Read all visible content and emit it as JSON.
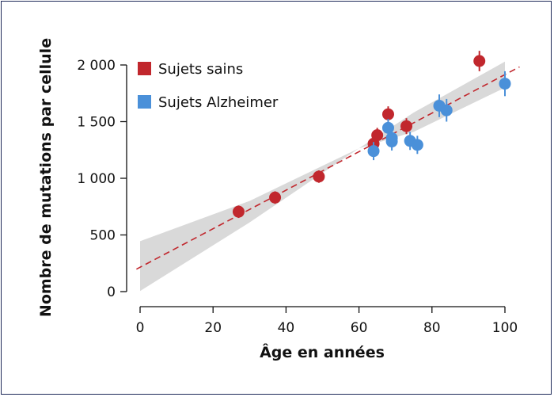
{
  "chart_data": {
    "type": "scatter",
    "xlabel": "Âge en années",
    "ylabel": "Nombre de mutations par cellule",
    "xlim": [
      0,
      100
    ],
    "ylim": [
      0,
      2000
    ],
    "xticks": [
      0,
      20,
      40,
      60,
      80,
      100
    ],
    "xtick_labels": [
      "0",
      "20",
      "40",
      "60",
      "80",
      "100"
    ],
    "yticks": [
      0,
      500,
      1000,
      1500,
      2000
    ],
    "ytick_labels": [
      "0",
      "500",
      "1 000",
      "1 500",
      "2 000"
    ],
    "grid": false,
    "legend_position": "top-left",
    "series": [
      {
        "name": "Sujets sains",
        "color": "#c1272d",
        "points": [
          {
            "x": 27,
            "y": 705,
            "err": 55
          },
          {
            "x": 37,
            "y": 830,
            "err": 55
          },
          {
            "x": 49,
            "y": 1015,
            "err": 55
          },
          {
            "x": 64,
            "y": 1305,
            "err": 60
          },
          {
            "x": 65,
            "y": 1380,
            "err": 65
          },
          {
            "x": 68,
            "y": 1565,
            "err": 70
          },
          {
            "x": 73,
            "y": 1460,
            "err": 70
          },
          {
            "x": 93,
            "y": 2035,
            "err": 90
          }
        ]
      },
      {
        "name": "Sujets Alzheimer",
        "color": "#4a90d9",
        "points": [
          {
            "x": 64,
            "y": 1240,
            "err": 80
          },
          {
            "x": 68,
            "y": 1445,
            "err": 80
          },
          {
            "x": 69,
            "y": 1355,
            "err": 80
          },
          {
            "x": 69,
            "y": 1325,
            "err": 80
          },
          {
            "x": 74,
            "y": 1330,
            "err": 80
          },
          {
            "x": 76,
            "y": 1295,
            "err": 80
          },
          {
            "x": 82,
            "y": 1640,
            "err": 100
          },
          {
            "x": 84,
            "y": 1600,
            "err": 100
          },
          {
            "x": 100,
            "y": 1835,
            "err": 110
          }
        ]
      }
    ],
    "trend_line": {
      "style": "dashed",
      "color": "#c1272d",
      "x_range": [
        -1,
        104
      ],
      "intercept": 215,
      "slope": 17
    },
    "confidence_band": {
      "color": "#d9d9d9",
      "lower": [
        [
          0,
          5
        ],
        [
          30,
          610
        ],
        [
          60,
          1265
        ],
        [
          75,
          1410
        ],
        [
          100,
          1800
        ]
      ],
      "upper": [
        [
          0,
          445
        ],
        [
          30,
          800
        ],
        [
          60,
          1265
        ],
        [
          75,
          1580
        ],
        [
          100,
          2030
        ]
      ]
    }
  }
}
